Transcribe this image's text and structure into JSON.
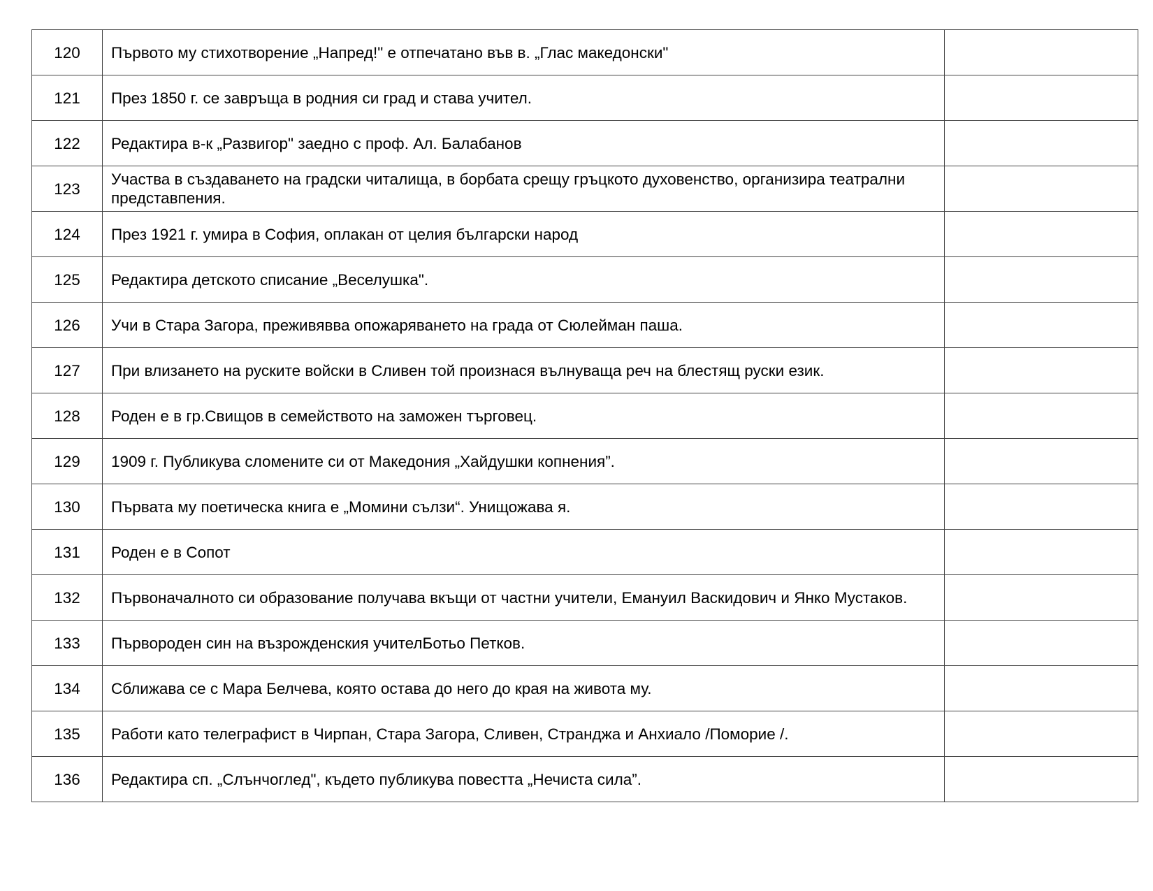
{
  "rows": [
    {
      "num": "120",
      "text": "Първото му стихотворение „Напред!\" е отпечатано във в. „Глас македонски\"",
      "answer": ""
    },
    {
      "num": "121",
      "text": "През 1850 г. се завръща в родния си град и става учител.",
      "answer": ""
    },
    {
      "num": "122",
      "text": "Редактира в-к „Развигор\" заедно с проф. Ал. Балабанов",
      "answer": ""
    },
    {
      "num": "123",
      "text": "Участва в създаването на градски читалища, в борбата срещу гръцкото духовенство, организира театрални представпения.",
      "answer": ""
    },
    {
      "num": "124",
      "text": "През 1921 г. умира в София, оплакан от целия български народ",
      "answer": ""
    },
    {
      "num": "125",
      "text": "Редактира детското списание „Веселушка\".",
      "answer": ""
    },
    {
      "num": "126",
      "text": "Учи в Стара Загора, преживявва опожаряването на града от Сюлейман паша.",
      "answer": ""
    },
    {
      "num": "127",
      "text": "При влизането на руските войски в Сливен той произнася вълнуваща реч на блестящ руски език.",
      "answer": ""
    },
    {
      "num": "128",
      "text": "Роден е в гр.Свищов в семейството на заможен търговец.",
      "answer": ""
    },
    {
      "num": "129",
      "text": "1909 г. Публикува сломените си от Македония „Хайдушки копнения”.",
      "answer": ""
    },
    {
      "num": "130",
      "text": "Първата му поетическа книга е „Момини сълзи“.  Унищожава я.",
      "answer": ""
    },
    {
      "num": "131",
      "text": "Роден е в Сопот",
      "answer": ""
    },
    {
      "num": "132",
      "text": "Първоначалното си образование получава вкъщи от частни учители, Емануил Васкидович и Янко Мустаков.",
      "answer": ""
    },
    {
      "num": "133",
      "text": "Първороден син на възрожденския учителБотьо Петков.",
      "answer": ""
    },
    {
      "num": "134",
      "text": "Сближава се с Мара Белчева, която остава до него до края на живота му.",
      "answer": ""
    },
    {
      "num": "135",
      "text": "Работи като телеграфист в Чирпан, Стара Загора, Сливен, Странджа и Анхиало /Поморие /.",
      "answer": ""
    },
    {
      "num": "136",
      "text": "Редактира сп. „Слънчоглед\", където публикува повестта „Нечиста сила”.",
      "answer": ""
    }
  ]
}
